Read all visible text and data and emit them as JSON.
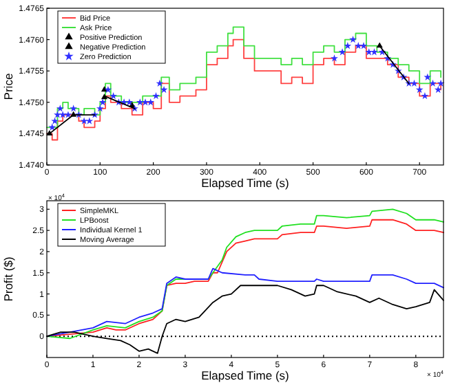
{
  "chart_data": [
    {
      "type": "line",
      "xlabel": "Elapsed Time (s)",
      "ylabel": "Price",
      "xlim": [
        0,
        745
      ],
      "ylim": [
        1.474,
        1.4765
      ],
      "xticks": [
        0,
        100,
        200,
        300,
        400,
        500,
        600,
        700
      ],
      "yticks": [
        {
          "value": 1.474,
          "label": "1.4740"
        },
        {
          "value": 1.4745,
          "label": "1.4745"
        },
        {
          "value": 1.475,
          "label": "1.4750"
        },
        {
          "value": 1.4755,
          "label": "1.4755"
        },
        {
          "value": 1.476,
          "label": "1.4760"
        },
        {
          "value": 1.4765,
          "label": "1.4765"
        }
      ],
      "legend": "top left",
      "grid": false,
      "series": [
        {
          "name": "Bid Price",
          "type": "step",
          "color": "#ff4040",
          "x": [
            0,
            10,
            20,
            30,
            40,
            60,
            70,
            90,
            100,
            110,
            120,
            140,
            160,
            180,
            200,
            215,
            230,
            250,
            280,
            300,
            320,
            340,
            350,
            370,
            390,
            420,
            440,
            460,
            480,
            500,
            520,
            540,
            560,
            580,
            600,
            620,
            640,
            660,
            680,
            700,
            720,
            740
          ],
          "values": [
            1.4745,
            1.4744,
            1.4747,
            1.4748,
            1.4748,
            1.4747,
            1.4746,
            1.4747,
            1.4749,
            1.4751,
            1.475,
            1.4749,
            1.4748,
            1.475,
            1.4749,
            1.4753,
            1.475,
            1.4751,
            1.4752,
            1.4756,
            1.4757,
            1.4759,
            1.476,
            1.4757,
            1.4755,
            1.4755,
            1.4753,
            1.4754,
            1.4753,
            1.4756,
            1.4757,
            1.4756,
            1.4758,
            1.4759,
            1.4757,
            1.4757,
            1.4756,
            1.4754,
            1.4753,
            1.4751,
            1.4753,
            1.4752
          ]
        },
        {
          "name": "Ask Price",
          "type": "step",
          "color": "#40e040",
          "x": [
            0,
            10,
            20,
            30,
            40,
            60,
            70,
            90,
            100,
            110,
            120,
            140,
            160,
            180,
            200,
            215,
            230,
            250,
            280,
            300,
            320,
            340,
            350,
            370,
            390,
            420,
            440,
            460,
            480,
            500,
            520,
            540,
            560,
            580,
            600,
            620,
            640,
            660,
            680,
            700,
            720,
            740
          ],
          "values": [
            1.4746,
            1.4746,
            1.4749,
            1.475,
            1.4749,
            1.4748,
            1.4749,
            1.4748,
            1.475,
            1.4753,
            1.4751,
            1.475,
            1.475,
            1.4751,
            1.4751,
            1.4754,
            1.4752,
            1.4753,
            1.4754,
            1.4758,
            1.4759,
            1.4761,
            1.4762,
            1.4759,
            1.4757,
            1.4757,
            1.4756,
            1.4757,
            1.4756,
            1.4758,
            1.4759,
            1.4758,
            1.476,
            1.4761,
            1.4759,
            1.4758,
            1.4757,
            1.4756,
            1.4755,
            1.4753,
            1.4755,
            1.4754
          ]
        },
        {
          "name": "Positive Prediction",
          "type": "scatter",
          "marker": "triangle",
          "color": "#000000",
          "x": [
            5,
            108,
            108
          ],
          "values": [
            1.4745,
            1.4752,
            1.47508
          ]
        },
        {
          "name": "Negative Prediction",
          "type": "scatter",
          "marker": "triangle",
          "color": "#000000",
          "x": [
            50,
            160,
            625
          ],
          "values": [
            1.4748,
            1.47495,
            1.4759
          ]
        },
        {
          "name": "Zero Prediction",
          "type": "scatter",
          "marker": "star",
          "color": "#3030ff",
          "x": [
            10,
            15,
            20,
            25,
            30,
            40,
            50,
            60,
            70,
            80,
            90,
            100,
            105,
            115,
            125,
            135,
            145,
            155,
            165,
            175,
            185,
            195,
            205,
            212,
            220,
            540,
            555,
            565,
            575,
            585,
            595,
            605,
            615,
            630,
            640,
            650,
            660,
            670,
            680,
            690,
            700,
            710,
            715,
            725,
            735,
            740
          ],
          "values": [
            1.4746,
            1.4747,
            1.4748,
            1.4749,
            1.4748,
            1.4748,
            1.4749,
            1.4748,
            1.4747,
            1.4747,
            1.4748,
            1.4749,
            1.475,
            1.4752,
            1.4751,
            1.475,
            1.475,
            1.475,
            1.4749,
            1.475,
            1.475,
            1.475,
            1.4751,
            1.4753,
            1.4752,
            1.4757,
            1.4758,
            1.4759,
            1.476,
            1.4759,
            1.4759,
            1.4758,
            1.4758,
            1.4758,
            1.4757,
            1.4756,
            1.4755,
            1.4754,
            1.4753,
            1.4753,
            1.4752,
            1.4751,
            1.4754,
            1.4753,
            1.4752,
            1.4753
          ]
        },
        {
          "color": "#000000",
          "x": [
            5,
            50,
            90,
            95,
            108,
            165,
            170,
            625,
            680
          ],
          "values": [
            1.4745,
            1.4748,
            1.4748,
            null,
            1.4751,
            1.4749,
            null,
            1.4759,
            1.4753
          ]
        }
      ]
    },
    {
      "type": "line",
      "xlabel": "Elapsed Time (s)",
      "ylabel": "Profit ($)",
      "xlim": [
        0,
        8.6
      ],
      "ylim": [
        -0.5,
        3.2
      ],
      "xticks": [
        0,
        1,
        2,
        3,
        4,
        5,
        6,
        7,
        8
      ],
      "yticks": [
        0,
        0.5,
        1,
        1.5,
        2,
        2.5,
        3
      ],
      "legend": "top left",
      "grid": false,
      "annotations": [
        "× 10$^{4}$",
        "× 10$^{4}$"
      ],
      "ref_lines": [
        {
          "axis": "y",
          "value": 0,
          "color": "#000000",
          "line_style": "dotted"
        }
      ],
      "series": [
        {
          "name": "SimpleMKL",
          "color": "#ff2020",
          "x": [
            0,
            0.5,
            1,
            1.3,
            1.5,
            1.7,
            2,
            2.3,
            2.5,
            2.6,
            2.8,
            3,
            3.2,
            3.5,
            3.6,
            3.7,
            3.9,
            4.1,
            4.3,
            4.5,
            5,
            5.1,
            5.5,
            5.8,
            5.85,
            6,
            6.5,
            7,
            7.05,
            7.5,
            7.8,
            8,
            8.4,
            8.6
          ],
          "values": [
            0,
            0.05,
            0.1,
            0.2,
            0.15,
            0.15,
            0.3,
            0.4,
            0.6,
            1.2,
            1.25,
            1.25,
            1.3,
            1.3,
            1.5,
            1.5,
            2,
            2.2,
            2.25,
            2.3,
            2.3,
            2.4,
            2.45,
            2.45,
            2.6,
            2.6,
            2.55,
            2.6,
            2.75,
            2.75,
            2.65,
            2.5,
            2.5,
            2.45
          ]
        },
        {
          "name": "LPBoost",
          "color": "#20e020",
          "x": [
            0,
            0.5,
            1,
            1.3,
            1.7,
            2,
            2.3,
            2.5,
            2.6,
            2.8,
            3,
            3.5,
            3.6,
            3.8,
            3.9,
            4.1,
            4.3,
            4.5,
            5,
            5.1,
            5.5,
            5.8,
            5.85,
            6,
            6.5,
            7,
            7.05,
            7.5,
            7.8,
            8,
            8.4,
            8.6
          ],
          "values": [
            0,
            -0.05,
            0.15,
            0.25,
            0.2,
            0.35,
            0.45,
            0.6,
            1.2,
            1.35,
            1.35,
            1.35,
            1.5,
            1.8,
            2.1,
            2.35,
            2.45,
            2.5,
            2.5,
            2.6,
            2.65,
            2.65,
            2.85,
            2.85,
            2.8,
            2.85,
            2.95,
            3,
            2.9,
            2.75,
            2.75,
            2.7
          ]
        },
        {
          "name": "Individual Kernel 1",
          "color": "#2020ff",
          "x": [
            0,
            0.5,
            1,
            1.3,
            1.7,
            2,
            2.3,
            2.5,
            2.6,
            2.8,
            3,
            3.5,
            3.6,
            3.8,
            4.3,
            4.5,
            4.6,
            5,
            5.8,
            5.85,
            6,
            7,
            7.05,
            7.5,
            7.8,
            8,
            8.4,
            8.6
          ],
          "values": [
            0,
            0.1,
            0.2,
            0.35,
            0.3,
            0.45,
            0.55,
            0.65,
            1.25,
            1.4,
            1.35,
            1.35,
            1.6,
            1.5,
            1.45,
            1.45,
            1.35,
            1.3,
            1.3,
            1.35,
            1.3,
            1.3,
            1.45,
            1.45,
            1.35,
            1.25,
            1.25,
            1.15
          ]
        },
        {
          "name": "Moving Average",
          "color": "#000000",
          "x": [
            0,
            0.3,
            0.6,
            1,
            1.3,
            1.6,
            1.8,
            2,
            2.2,
            2.4,
            2.5,
            2.6,
            2.8,
            3,
            3.3,
            3.6,
            3.8,
            4,
            4.2,
            4.5,
            5,
            5.3,
            5.6,
            5.8,
            5.85,
            6,
            6.3,
            6.7,
            7,
            7.2,
            7.5,
            7.8,
            8,
            8.3,
            8.4,
            8.6
          ],
          "values": [
            0,
            0.1,
            0.1,
            0,
            -0.05,
            -0.1,
            -0.2,
            -0.35,
            -0.3,
            -0.4,
            0,
            0.3,
            0.4,
            0.35,
            0.45,
            0.8,
            0.95,
            1,
            1.2,
            1.2,
            1.2,
            1.1,
            0.95,
            1,
            1.2,
            1.2,
            1.05,
            0.95,
            0.8,
            0.9,
            0.75,
            0.65,
            0.7,
            0.8,
            1.1,
            0.85
          ]
        }
      ]
    }
  ]
}
